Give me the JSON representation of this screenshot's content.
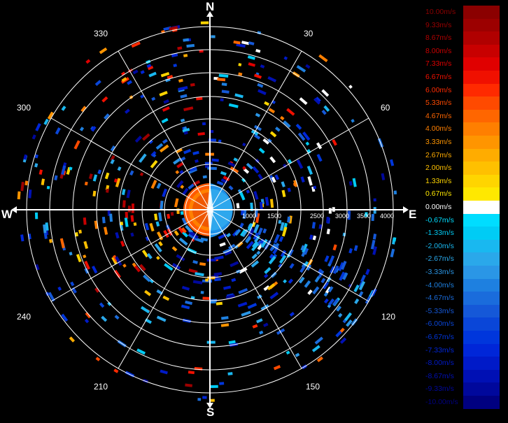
{
  "compass": {
    "north": "N",
    "south": "S",
    "east": "E",
    "west": "W"
  },
  "bearings": [
    "30",
    "60",
    "120",
    "150",
    "210",
    "240",
    "300",
    "330"
  ],
  "range_labels": [
    "1000",
    "1500",
    "2500",
    "3000",
    "3500",
    "4000"
  ],
  "legend": [
    {
      "label": "10.00m/s",
      "color": "#8b0000"
    },
    {
      "label": "9.33m/s",
      "color": "#9c0000"
    },
    {
      "label": "8.67m/s",
      "color": "#b00000"
    },
    {
      "label": "8.00m/s",
      "color": "#c80000"
    },
    {
      "label": "7.33m/s",
      "color": "#e00000"
    },
    {
      "label": "6.67m/s",
      "color": "#f01000"
    },
    {
      "label": "6.00m/s",
      "color": "#ff2a00"
    },
    {
      "label": "5.33m/s",
      "color": "#ff4a00"
    },
    {
      "label": "4.67m/s",
      "color": "#ff6600"
    },
    {
      "label": "4.00m/s",
      "color": "#ff7f00"
    },
    {
      "label": "3.33m/s",
      "color": "#ff9500"
    },
    {
      "label": "2.67m/s",
      "color": "#ffac00"
    },
    {
      "label": "2.00m/s",
      "color": "#ffc000"
    },
    {
      "label": "1.33m/s",
      "color": "#ffd500"
    },
    {
      "label": "0.67m/s",
      "color": "#ffe800"
    },
    {
      "label": "0.00m/s",
      "color": "#ffffff"
    },
    {
      "label": "-0.67m/s",
      "color": "#00ddff"
    },
    {
      "label": "-1.33m/s",
      "color": "#00ccf5"
    },
    {
      "label": "-2.00m/s",
      "color": "#19b8f0"
    },
    {
      "label": "-2.67m/s",
      "color": "#2aa8ea"
    },
    {
      "label": "-3.33m/s",
      "color": "#2a96e6"
    },
    {
      "label": "-4.00m/s",
      "color": "#1e80e0"
    },
    {
      "label": "-4.67m/s",
      "color": "#1a6cdc"
    },
    {
      "label": "-5.33m/s",
      "color": "#1558d8"
    },
    {
      "label": "-6.00m/s",
      "color": "#0a46d8"
    },
    {
      "label": "-6.67m/s",
      "color": "#0036dc"
    },
    {
      "label": "-7.33m/s",
      "color": "#0026d8"
    },
    {
      "label": "-8.00m/s",
      "color": "#001ac8"
    },
    {
      "label": "-8.67m/s",
      "color": "#0010b4"
    },
    {
      "label": "-9.33m/s",
      "color": "#00089c"
    },
    {
      "label": "-10.00m/s",
      "color": "#000080"
    }
  ]
}
